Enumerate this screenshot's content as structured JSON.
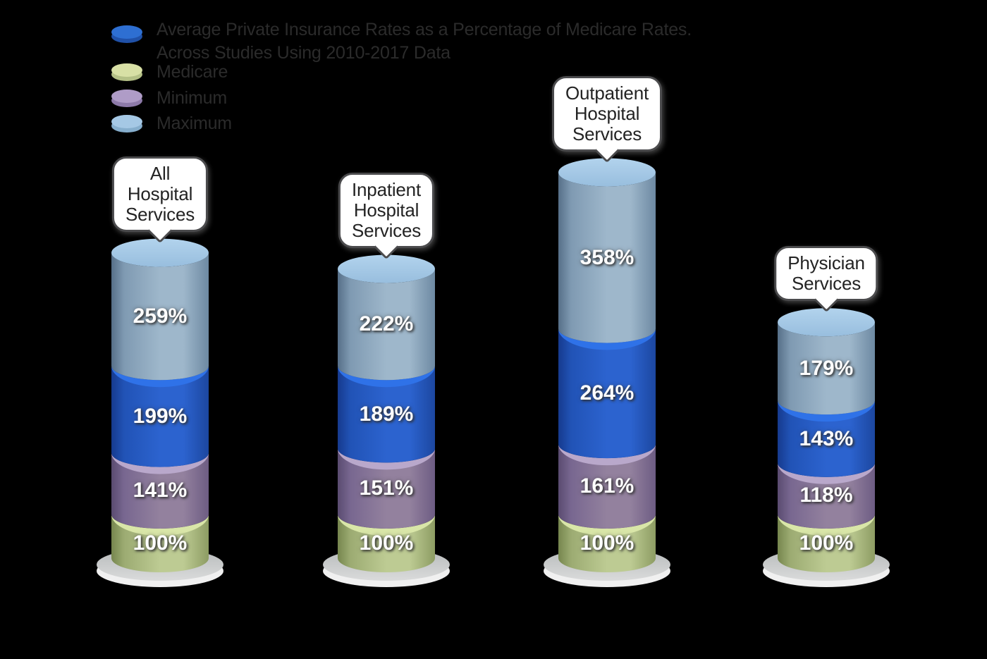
{
  "background": "#000000",
  "title": {
    "line1": "Average Private Insurance Rates as a Percentage of Medicare Rates.",
    "line2": "Across Studies Using 2010-2017 Data",
    "color": "#2b2b2b"
  },
  "legend": {
    "position": "top-left",
    "text_color": "#2b2b2b",
    "items": [
      {
        "key": "average",
        "label": "Average Private Insurance Rates as a Percentage of Medicare Rates. Across Studies Using 2010-2017 Data",
        "disc_top": "#2e6fd2",
        "disc_side": "#2051a8"
      },
      {
        "key": "medicare",
        "label": "Medicare",
        "disc_top": "#d8e0a5",
        "disc_side": "#b4c086"
      },
      {
        "key": "minimum",
        "label": "Minimum",
        "disc_top": "#af9cc7",
        "disc_side": "#8d7aa9"
      },
      {
        "key": "maximum",
        "label": "Maximum",
        "disc_top": "#a5c8e5",
        "disc_side": "#86aecd"
      }
    ]
  },
  "chart_data": {
    "type": "bar",
    "subtype": "3d-stacked-cylinder",
    "title": "Average Private Insurance Rates as a Percentage of Medicare Rates. Across Studies Using 2010-2017 Data",
    "unit": "%",
    "categories": [
      "All Hospital Services",
      "Inpatient Hospital Services",
      "Outpatient Hospital Services",
      "Physician Services"
    ],
    "series": [
      {
        "key": "medicare",
        "name": "Medicare",
        "values": [
          100,
          100,
          100,
          100
        ],
        "colors": {
          "dark": "#76864e",
          "mid": "#9cab72",
          "light": "#bdcb93",
          "edge2": "#8d9c63",
          "rim": "#d9e6a8"
        }
      },
      {
        "key": "minimum",
        "name": "Minimum",
        "values": [
          141,
          151,
          161,
          118
        ],
        "colors": {
          "dark": "#5a4b70",
          "mid": "#786790",
          "light": "#93819e",
          "edge2": "#6d5c83",
          "rim": "#b9a8cb"
        }
      },
      {
        "key": "average",
        "name": "Average Private Insurance Rates as a Percentage of Medicare Rates. Across Studies Using 2010-2017 Data",
        "values": [
          199,
          189,
          264,
          143
        ],
        "colors": {
          "dark": "#163a8e",
          "mid": "#2153b6",
          "light": "#2c63cf",
          "edge2": "#1c47a0",
          "rim": "#2f72e8"
        }
      },
      {
        "key": "maximum",
        "name": "Maximum",
        "values": [
          259,
          222,
          358,
          179
        ],
        "colors": {
          "dark": "#566f88",
          "mid": "#7f9ab2",
          "light": "#9eb7cb",
          "edge2": "#6d89a2",
          "rim": "#a7cae7",
          "cap_light": "#b2d3ed",
          "cap_dark": "#98bede"
        }
      }
    ],
    "value_label_color": "#ffffff",
    "legend_position": "top-left",
    "grid": false,
    "style": {
      "plate_top_light": "#dadbdb",
      "plate_top_dark": "#b7babb",
      "plate_side": "#f0f0f0",
      "bubble_bg": "#ffffff",
      "bubble_border": "#4b4b4d",
      "bubble_text": "#232323"
    }
  }
}
